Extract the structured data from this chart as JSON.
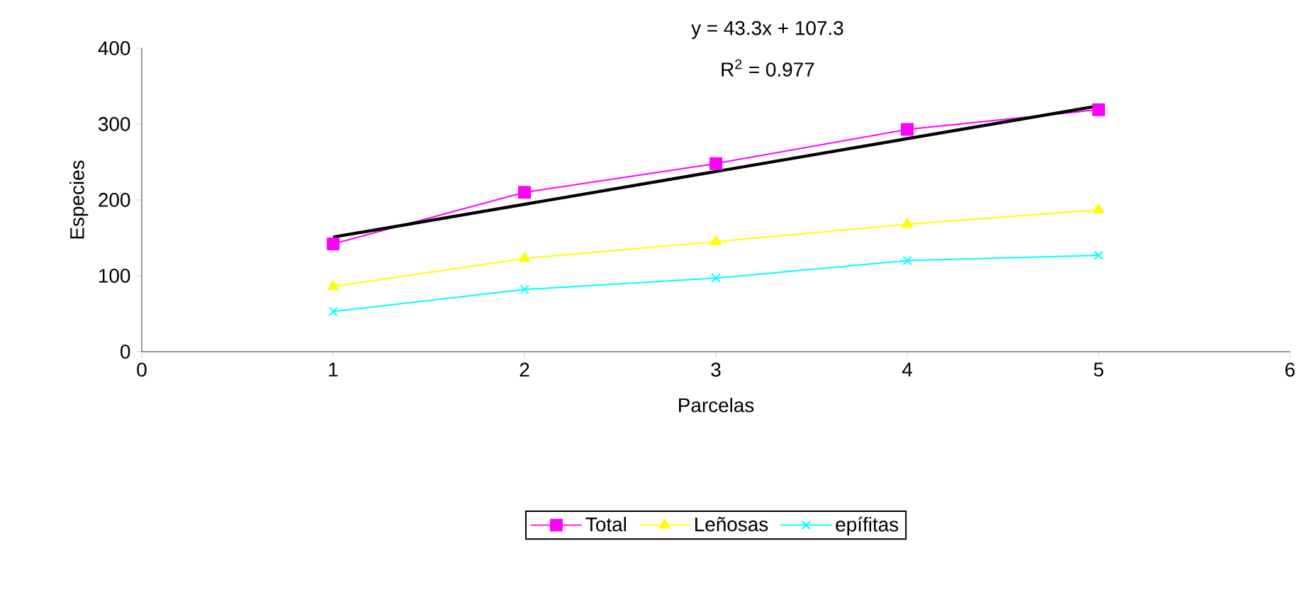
{
  "chart_data": {
    "type": "line",
    "xlabel": "Parcelas",
    "ylabel": "Especies",
    "x": [
      1,
      2,
      3,
      4,
      5
    ],
    "series": [
      {
        "name": "Total",
        "color": "#ff00ff",
        "marker": "square",
        "values": [
          142,
          210,
          248,
          293,
          319
        ]
      },
      {
        "name": "Leñosas",
        "color": "#ffff00",
        "marker": "triangle",
        "values": [
          86,
          123,
          145,
          168,
          187
        ]
      },
      {
        "name": "epífitas",
        "color": "#00ffff",
        "marker": "cross",
        "values": [
          53,
          82,
          97,
          120,
          127
        ]
      },
      {
        "type": "line",
        "color": "#000000",
        "marker": "none",
        "x": [
          1,
          5
        ],
        "values": [
          151,
          324
        ]
      }
    ],
    "annotations": [
      "y = 43.3x + 107.3",
      "R$^{2}$ = 0.977"
    ],
    "xlim": [
      0,
      6
    ],
    "xticks": [
      0,
      1,
      2,
      3,
      4,
      5,
      6
    ],
    "ylim": [
      0,
      400
    ],
    "yticks": [
      0,
      100,
      200,
      300,
      400
    ],
    "grid": false,
    "legend": "bottom"
  }
}
